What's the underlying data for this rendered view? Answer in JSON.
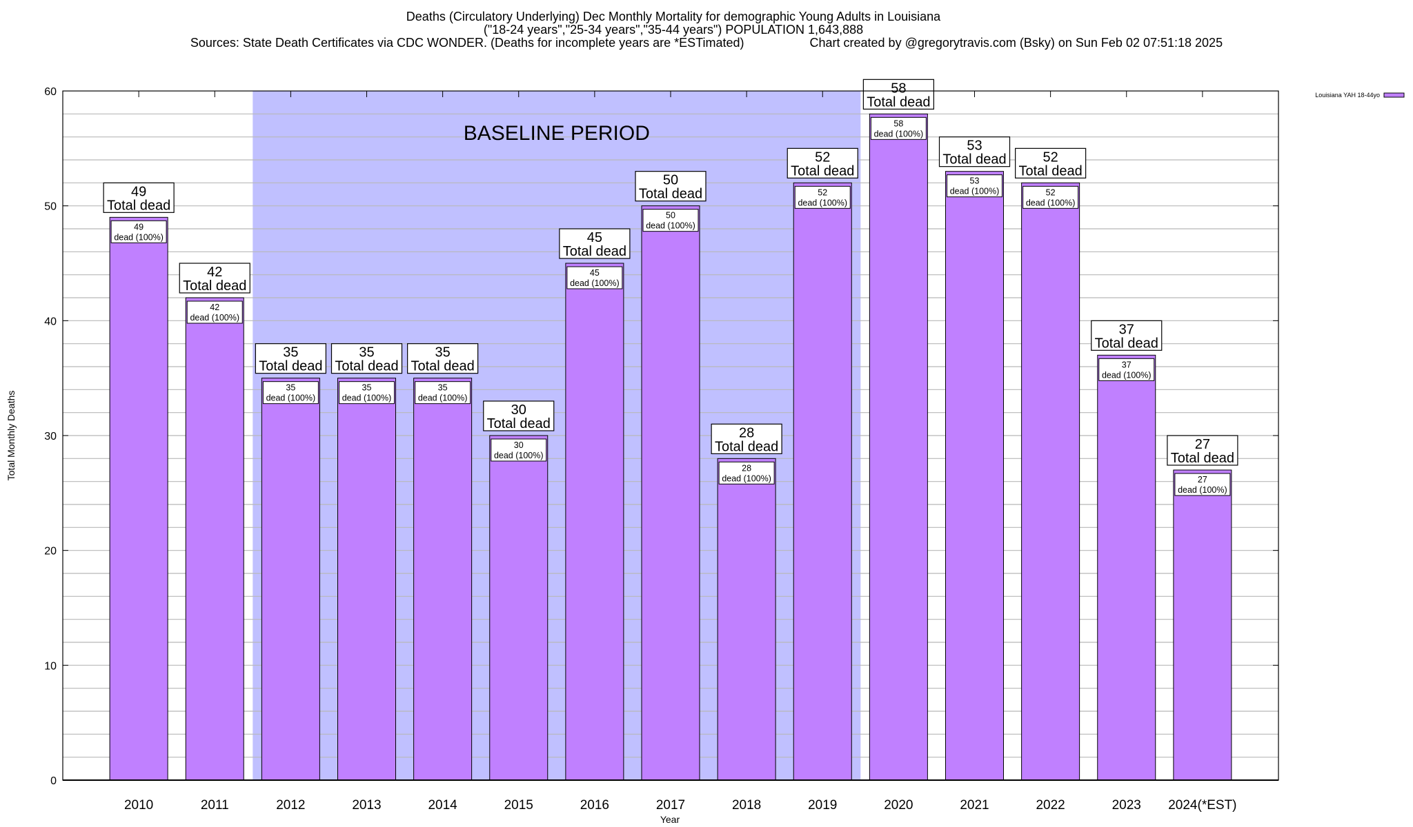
{
  "chart_data": {
    "type": "bar",
    "title": "Deaths (Circulatory Underlying) Dec Monthly Mortality for demographic Young Adults in Louisiana",
    "subtitle": "(\"18-24 years\",\"25-34 years\",\"35-44 years\") POPULATION 1,643,888",
    "sources": "Sources: State Death Certificates via CDC WONDER. (Deaths for incomplete years are *ESTimated)",
    "credit": "Chart created by @gregorytravis.com (Bsky) on Sun Feb 02 07:51:18 2025",
    "xlabel": "Year",
    "ylabel": "Total Monthly Deaths",
    "ylim": [
      0,
      60
    ],
    "yticks": [
      0,
      10,
      20,
      30,
      40,
      50,
      60
    ],
    "minor_grid_step": 2,
    "grid": true,
    "legend_position": "top-right",
    "categories": [
      "2010",
      "2011",
      "2012",
      "2013",
      "2014",
      "2015",
      "2016",
      "2017",
      "2018",
      "2019",
      "2020",
      "2021",
      "2022",
      "2023",
      "2024(*EST)"
    ],
    "series": [
      {
        "name": "Louisiana YAH 18-44yo",
        "color": "#c080ff",
        "values": [
          49,
          42,
          35,
          35,
          35,
          30,
          45,
          50,
          28,
          52,
          58,
          53,
          52,
          37,
          27
        ]
      }
    ],
    "top_label_suffix": "Total dead",
    "inner_label_suffix": "dead (100%)",
    "baseline": {
      "label": "BASELINE PERIOD",
      "from": "2012",
      "to": "2019",
      "color": "#c0c0ff"
    }
  }
}
